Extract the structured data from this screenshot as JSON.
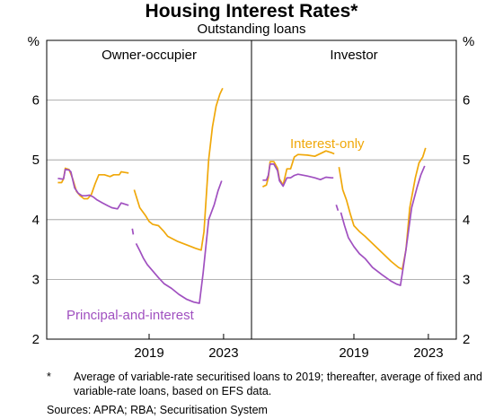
{
  "title": "Housing Interest Rates*",
  "subtitle": "Outstanding loans",
  "footnote": {
    "marker": "*",
    "text": "Average of variable-rate securitised loans to 2019; thereafter, average of fixed and variable-rate loans, based on EFS data."
  },
  "source": "Sources: APRA; RBA; Securitisation System",
  "colors": {
    "interest_only": "#F0A80A",
    "principal_and_interest": "#A050C0",
    "grid": "#999999",
    "axis": "#000000"
  },
  "chart_data": [
    {
      "type": "line",
      "panel_title": "Owner-occupier",
      "y_unit_left": "%",
      "y_unit_right": "%",
      "ylim": [
        2,
        7
      ],
      "yticks": [
        2,
        3,
        4,
        5,
        6
      ],
      "xlim": [
        2013.5,
        2024.5
      ],
      "xticks": [
        2019,
        2023
      ],
      "grid": true,
      "series": [
        {
          "key": "interest_only",
          "segments": [
            [
              [
                2014.1,
                4.62
              ],
              [
                2014.3,
                4.62
              ],
              [
                2014.4,
                4.68
              ],
              [
                2014.5,
                4.86
              ],
              [
                2014.7,
                4.84
              ],
              [
                2014.9,
                4.68
              ],
              [
                2015.1,
                4.47
              ],
              [
                2015.3,
                4.4
              ],
              [
                2015.5,
                4.35
              ],
              [
                2015.7,
                4.35
              ],
              [
                2015.9,
                4.42
              ],
              [
                2016.1,
                4.6
              ],
              [
                2016.3,
                4.75
              ],
              [
                2016.6,
                4.75
              ],
              [
                2016.9,
                4.72
              ],
              [
                2017.1,
                4.75
              ],
              [
                2017.4,
                4.75
              ],
              [
                2017.5,
                4.8
              ],
              [
                2017.7,
                4.79
              ],
              [
                2017.9,
                4.78
              ]
            ],
            [
              [
                2018.2,
                4.5
              ],
              [
                2018.5,
                4.2
              ],
              [
                2018.8,
                4.07
              ],
              [
                2019.0,
                3.97
              ],
              [
                2019.2,
                3.92
              ],
              [
                2019.5,
                3.9
              ],
              [
                2019.8,
                3.8
              ],
              [
                2020.0,
                3.72
              ],
              [
                2020.5,
                3.64
              ],
              [
                2021.0,
                3.58
              ],
              [
                2021.5,
                3.52
              ],
              [
                2021.8,
                3.49
              ],
              [
                2021.95,
                3.8
              ],
              [
                2022.2,
                5.0
              ],
              [
                2022.4,
                5.55
              ],
              [
                2022.6,
                5.9
              ],
              [
                2022.8,
                6.1
              ],
              [
                2022.95,
                6.2
              ]
            ]
          ]
        },
        {
          "key": "principal_and_interest",
          "segments": [
            [
              [
                2014.1,
                4.69
              ],
              [
                2014.3,
                4.68
              ],
              [
                2014.4,
                4.68
              ],
              [
                2014.5,
                4.84
              ],
              [
                2014.7,
                4.83
              ],
              [
                2014.8,
                4.8
              ],
              [
                2015.0,
                4.53
              ],
              [
                2015.2,
                4.44
              ],
              [
                2015.4,
                4.4
              ],
              [
                2015.6,
                4.4
              ],
              [
                2015.8,
                4.41
              ],
              [
                2016.0,
                4.38
              ],
              [
                2016.2,
                4.33
              ],
              [
                2016.5,
                4.28
              ],
              [
                2016.8,
                4.23
              ],
              [
                2017.0,
                4.2
              ],
              [
                2017.3,
                4.18
              ],
              [
                2017.5,
                4.28
              ],
              [
                2017.8,
                4.25
              ],
              [
                2017.9,
                4.24
              ]
            ],
            [
              [
                2018.1,
                3.85
              ],
              [
                2018.15,
                3.75
              ]
            ],
            [
              [
                2018.3,
                3.6
              ],
              [
                2018.5,
                3.48
              ],
              [
                2018.7,
                3.35
              ],
              [
                2018.9,
                3.25
              ],
              [
                2019.2,
                3.14
              ],
              [
                2019.5,
                3.03
              ],
              [
                2019.8,
                2.93
              ],
              [
                2020.2,
                2.85
              ],
              [
                2020.6,
                2.75
              ],
              [
                2021.0,
                2.67
              ],
              [
                2021.4,
                2.62
              ],
              [
                2021.7,
                2.6
              ],
              [
                2021.9,
                3.1
              ],
              [
                2022.2,
                4.0
              ],
              [
                2022.5,
                4.25
              ],
              [
                2022.7,
                4.48
              ],
              [
                2022.9,
                4.65
              ]
            ]
          ]
        }
      ],
      "annotations": [
        {
          "text": "Principal-and-interest",
          "series": "principal_and_interest"
        }
      ]
    },
    {
      "type": "line",
      "panel_title": "Investor",
      "xlim": [
        2013.5,
        2024.5
      ],
      "xticks": [
        2019,
        2023
      ],
      "ylim": [
        2,
        7
      ],
      "yticks": [
        2,
        3,
        4,
        5,
        6
      ],
      "grid": true,
      "series": [
        {
          "key": "interest_only",
          "segments": [
            [
              [
                2014.1,
                4.55
              ],
              [
                2014.3,
                4.58
              ],
              [
                2014.4,
                4.7
              ],
              [
                2014.5,
                4.97
              ],
              [
                2014.7,
                4.97
              ],
              [
                2014.9,
                4.86
              ],
              [
                2015.0,
                4.68
              ],
              [
                2015.2,
                4.58
              ],
              [
                2015.4,
                4.85
              ],
              [
                2015.6,
                4.85
              ],
              [
                2015.8,
                5.05
              ],
              [
                2016.0,
                5.09
              ],
              [
                2016.5,
                5.08
              ],
              [
                2016.9,
                5.06
              ],
              [
                2017.1,
                5.09
              ],
              [
                2017.3,
                5.12
              ],
              [
                2017.5,
                5.15
              ],
              [
                2017.8,
                5.12
              ],
              [
                2017.95,
                5.1
              ]
            ],
            [
              [
                2018.2,
                4.88
              ],
              [
                2018.4,
                4.5
              ],
              [
                2018.6,
                4.33
              ],
              [
                2018.8,
                4.1
              ],
              [
                2019.0,
                3.9
              ],
              [
                2019.3,
                3.8
              ],
              [
                2019.6,
                3.72
              ],
              [
                2020.0,
                3.6
              ],
              [
                2020.5,
                3.45
              ],
              [
                2021.0,
                3.3
              ],
              [
                2021.4,
                3.2
              ],
              [
                2021.6,
                3.17
              ],
              [
                2021.8,
                3.5
              ],
              [
                2022.0,
                4.2
              ],
              [
                2022.3,
                4.7
              ],
              [
                2022.5,
                4.95
              ],
              [
                2022.7,
                5.05
              ],
              [
                2022.85,
                5.2
              ]
            ]
          ]
        },
        {
          "key": "principal_and_interest",
          "segments": [
            [
              [
                2014.1,
                4.66
              ],
              [
                2014.3,
                4.66
              ],
              [
                2014.4,
                4.74
              ],
              [
                2014.5,
                4.93
              ],
              [
                2014.7,
                4.93
              ],
              [
                2014.9,
                4.82
              ],
              [
                2015.0,
                4.65
              ],
              [
                2015.2,
                4.56
              ],
              [
                2015.4,
                4.7
              ],
              [
                2015.6,
                4.7
              ],
              [
                2015.8,
                4.74
              ],
              [
                2016.0,
                4.76
              ],
              [
                2016.5,
                4.73
              ],
              [
                2016.9,
                4.7
              ],
              [
                2017.2,
                4.67
              ],
              [
                2017.5,
                4.71
              ],
              [
                2017.8,
                4.7
              ],
              [
                2017.9,
                4.7
              ]
            ],
            [
              [
                2018.05,
                4.25
              ],
              [
                2018.15,
                4.15
              ]
            ],
            [
              [
                2018.3,
                4.12
              ],
              [
                2018.5,
                3.9
              ],
              [
                2018.7,
                3.7
              ],
              [
                2019.0,
                3.55
              ],
              [
                2019.3,
                3.43
              ],
              [
                2019.6,
                3.35
              ],
              [
                2020.0,
                3.2
              ],
              [
                2020.5,
                3.08
              ],
              [
                2021.0,
                2.97
              ],
              [
                2021.3,
                2.92
              ],
              [
                2021.5,
                2.9
              ],
              [
                2021.8,
                3.5
              ],
              [
                2022.1,
                4.2
              ],
              [
                2022.4,
                4.55
              ],
              [
                2022.6,
                4.75
              ],
              [
                2022.8,
                4.9
              ]
            ]
          ]
        }
      ],
      "annotations": [
        {
          "text": "Interest-only",
          "series": "interest_only"
        }
      ]
    }
  ]
}
